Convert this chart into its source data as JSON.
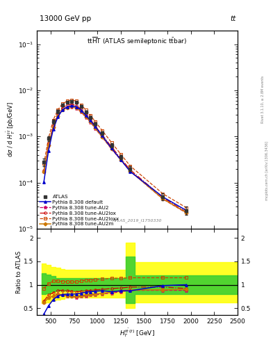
{
  "title_top": "13000 GeV pp",
  "title_right": "tt",
  "ylabel_main": "d$\\sigma$ / d $H_T^{t\\bar{t}}$ [pb/GeV]",
  "ylabel_ratio": "Ratio to ATLAS",
  "xlabel": "$H_T^{t\\bar{t}\\,(t)}$ [GeV]",
  "watermark": "ATLAS_2019_I1750330",
  "rivet_text": "Rivet 3.1.10, ≥ 2.8M events",
  "mcplots_text": "mcplots.cern.ch [arXiv:1306.3436]",
  "xlim": [
    350,
    2500
  ],
  "ylim_main": [
    1e-05,
    0.2
  ],
  "ylim_ratio": [
    0.35,
    2.2
  ],
  "x_centers": [
    425,
    475,
    525,
    575,
    625,
    675,
    725,
    775,
    825,
    875,
    925,
    975,
    1050,
    1150,
    1250,
    1350,
    1700,
    1950
  ],
  "atlas_y": [
    0.00028,
    0.0009,
    0.0021,
    0.0035,
    0.0048,
    0.0055,
    0.0058,
    0.0055,
    0.0045,
    0.0034,
    0.0026,
    0.0019,
    0.0012,
    0.00065,
    0.00036,
    0.0002,
    5e-05,
    2.5e-05
  ],
  "atlas_yerr": [
    5e-05,
    0.0001,
    0.0002,
    0.0003,
    0.0003,
    0.0003,
    0.0003,
    0.0003,
    0.0003,
    0.00025,
    0.0002,
    0.00015,
    0.0001,
    7e-05,
    4e-05,
    2.5e-05,
    8e-06,
    5e-06
  ],
  "default_ratio": [
    0.37,
    0.55,
    0.68,
    0.76,
    0.79,
    0.8,
    0.8,
    0.8,
    0.82,
    0.84,
    0.85,
    0.86,
    0.87,
    0.85,
    0.87,
    0.87,
    0.98,
    1.0
  ],
  "au2_ratio": [
    0.62,
    0.72,
    0.76,
    0.8,
    0.78,
    0.76,
    0.75,
    0.73,
    0.75,
    0.76,
    0.78,
    0.78,
    0.8,
    0.82,
    0.85,
    0.88,
    0.88,
    0.88
  ],
  "au2lox_ratio": [
    0.65,
    0.78,
    0.83,
    0.88,
    0.88,
    0.87,
    0.86,
    0.85,
    0.86,
    0.87,
    0.88,
    0.89,
    0.9,
    0.92,
    0.93,
    0.95,
    0.95,
    0.92
  ],
  "au2loxx_ratio": [
    0.92,
    1.02,
    1.08,
    1.08,
    1.07,
    1.06,
    1.06,
    1.06,
    1.08,
    1.1,
    1.1,
    1.11,
    1.12,
    1.14,
    1.14,
    1.15,
    1.15,
    1.15
  ],
  "au2m_ratio": [
    0.62,
    0.72,
    0.76,
    0.79,
    0.78,
    0.77,
    0.76,
    0.75,
    0.77,
    0.78,
    0.8,
    0.8,
    0.82,
    0.84,
    0.87,
    0.89,
    0.89,
    0.9
  ],
  "band_edges": [
    400,
    450,
    500,
    550,
    600,
    650,
    700,
    750,
    800,
    850,
    900,
    950,
    1000,
    1100,
    1200,
    1300,
    1400,
    2000,
    2500
  ],
  "green_lo": [
    0.8,
    0.82,
    0.86,
    0.88,
    0.88,
    0.88,
    0.88,
    0.88,
    0.88,
    0.88,
    0.88,
    0.88,
    0.88,
    0.88,
    0.88,
    0.6,
    0.8,
    0.8
  ],
  "green_hi": [
    1.25,
    1.22,
    1.18,
    1.14,
    1.14,
    1.14,
    1.14,
    1.14,
    1.14,
    1.14,
    1.14,
    1.14,
    1.14,
    1.14,
    1.14,
    1.6,
    1.2,
    1.2
  ],
  "yellow_lo": [
    0.6,
    0.62,
    0.66,
    0.68,
    0.7,
    0.72,
    0.72,
    0.72,
    0.72,
    0.72,
    0.72,
    0.72,
    0.72,
    0.72,
    0.72,
    0.5,
    0.62,
    0.62
  ],
  "yellow_hi": [
    1.45,
    1.42,
    1.38,
    1.36,
    1.34,
    1.32,
    1.32,
    1.32,
    1.32,
    1.32,
    1.32,
    1.32,
    1.32,
    1.32,
    1.32,
    1.9,
    1.48,
    1.48
  ],
  "color_atlas": "#333333",
  "color_default": "#0000cc",
  "color_au2": "#cc0066",
  "color_au2lox": "#cc0000",
  "color_au2loxx": "#cc4400",
  "color_au2m": "#cc7700",
  "background_color": "#ffffff"
}
